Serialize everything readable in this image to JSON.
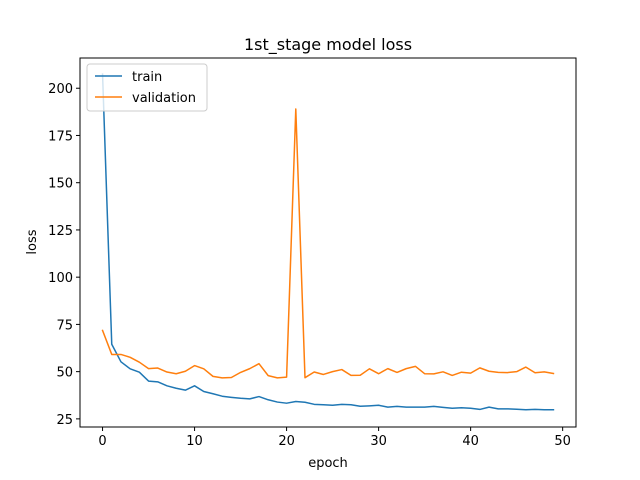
{
  "chart_data": {
    "type": "line",
    "title": "1st_stage model loss",
    "xlabel": "epoch",
    "ylabel": "loss",
    "xlim": [
      -2.45,
      51.45
    ],
    "ylim": [
      20.7,
      216.0
    ],
    "xticks": [
      0,
      10,
      20,
      30,
      40,
      50
    ],
    "yticks": [
      25,
      50,
      75,
      100,
      125,
      150,
      175,
      200
    ],
    "grid": false,
    "legend": "top-left",
    "x": [
      0,
      1,
      2,
      3,
      4,
      5,
      6,
      7,
      8,
      9,
      10,
      11,
      12,
      13,
      14,
      15,
      16,
      17,
      18,
      19,
      20,
      21,
      22,
      23,
      24,
      25,
      26,
      27,
      28,
      29,
      30,
      31,
      32,
      33,
      34,
      35,
      36,
      37,
      38,
      39,
      40,
      41,
      42,
      43,
      44,
      45,
      46,
      47,
      48,
      49
    ],
    "series": [
      {
        "name": "train",
        "color": "#1f77b4",
        "values": [
          207.5,
          64.5,
          55.2,
          51.5,
          49.7,
          45.0,
          44.6,
          42.5,
          41.2,
          40.2,
          42.5,
          39.5,
          38.3,
          37.0,
          36.4,
          35.9,
          35.6,
          36.8,
          35.1,
          33.9,
          33.3,
          34.2,
          33.8,
          32.7,
          32.5,
          32.2,
          32.7,
          32.5,
          31.7,
          31.9,
          32.2,
          31.2,
          31.6,
          31.2,
          31.2,
          31.2,
          31.6,
          31.1,
          30.6,
          30.9,
          30.6,
          30.0,
          31.2,
          30.3,
          30.3,
          30.1,
          29.8,
          30.0,
          29.8,
          29.8
        ]
      },
      {
        "name": "validation",
        "color": "#ff7f0e",
        "values": [
          71.8,
          59.1,
          59.1,
          57.6,
          55.0,
          51.6,
          51.9,
          49.8,
          48.9,
          50.2,
          53.2,
          51.5,
          47.5,
          46.7,
          46.9,
          49.6,
          51.6,
          54.2,
          47.9,
          46.7,
          47.1,
          189.0,
          46.8,
          49.8,
          48.5,
          50.0,
          51.1,
          48.0,
          48.1,
          51.5,
          48.9,
          51.6,
          49.6,
          51.6,
          52.8,
          48.9,
          48.8,
          49.9,
          48.0,
          49.7,
          49.2,
          52.0,
          50.2,
          49.6,
          49.5,
          50.0,
          52.4,
          49.4,
          49.9,
          49.0
        ]
      }
    ]
  }
}
